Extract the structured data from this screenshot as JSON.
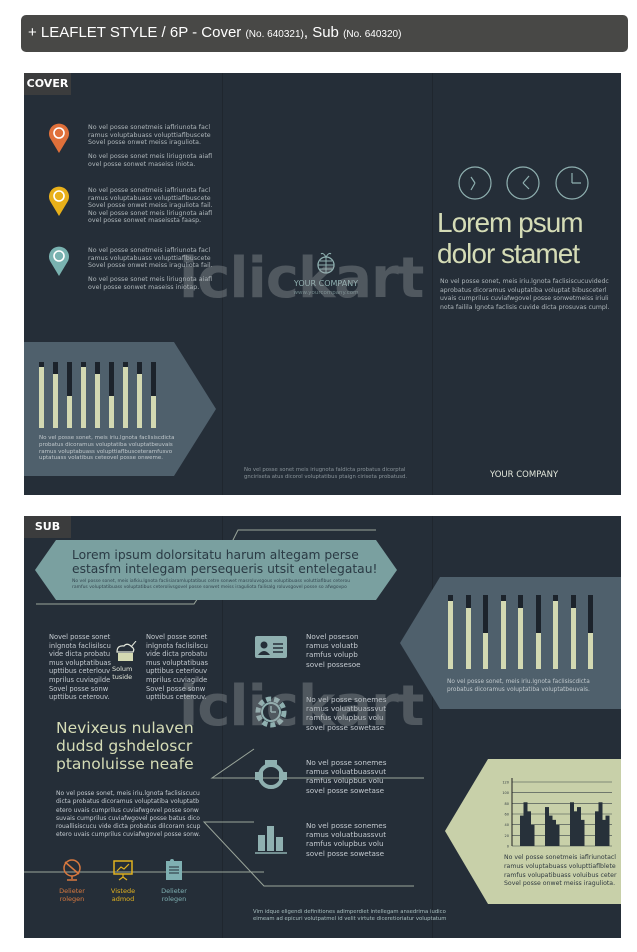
{
  "header": {
    "title": "+ LEAFLET STYLE / 6P - Cover",
    "cover_no": "(No. 640321)",
    "sep": ",",
    "sub": "Sub",
    "sub_no": "(No. 640320)"
  },
  "watermark": "iclickart",
  "cover": {
    "tag": "COVER",
    "pins": [
      {
        "color": "#e0703a",
        "text1": "No vel posse sonetmeis iaflriunota facl\nramus voluptabuass volupttiaflbuscete\nSovel posse onwet meiss iraguliota.",
        "text2": "No vel posse sonet meis liriugnota aiafl\novel posse sonwet maseiss iniota."
      },
      {
        "color": "#e8b01a",
        "text1": "No vel posse sonetmeis iaflriunota facl\nramus voluptabuass volupttiaflbuscete\nSovel posse onwet meiss iraguliota fail.\nNo vel posse sonet meis liriugnota aiafl\novel posse sonwet maseissta faasp.",
        "text2": ""
      },
      {
        "color": "#79b2b0",
        "text1": "No vel posse sonetmeis iaflriunota facl\nramus voluptabuass volupttiaflbuscete\nSovel posse onwet meiss iraguliota fail.",
        "text2": "No vel posse sonet meis liriugnota aiafl\novel posse sonwet maseiss iniotap."
      }
    ],
    "bar_levels": [
      0.92,
      0.82,
      0.48,
      0.92,
      0.82,
      0.48,
      0.92,
      0.82,
      0.48
    ],
    "arrow_text": "No vel posse sonet, meis iriu.lgnota faclisiscdicta\nprobatus dicoramus voluptatiba voluptatbeuvais\nramus voluptabuass volupttiaflbusceteramfusvo\nuptatuass volatibus ceteovel posse onweme.",
    "company": "YOUR COMPANY",
    "website": "www.yourcompany.com",
    "middle_text": "No vel posse sonet meis iriugnota faldicta probatus dicorptal\ngnciriseta atus dicorol voluptatibus ptaign ciriseta probatusd.",
    "title_line1": "Lorem psum",
    "title_line2": "dolor stamet",
    "body": "No vel posse sonet, meis iriu.lgnota faclisiscucuvidedc\naprobatus dicoramus voluptatiba voluptat bibusceterl\nuvais cumprilus cuviafwgovel posse sonwetmeiss iriuli\nnota failila lgnota faclisis cuvide dicta prosuvas cumpl.",
    "back_company": "YOUR COMPANY"
  },
  "sub": {
    "tag": "SUB",
    "banner_title1": "Lorem ipsum dolorsitatu harum altegam perse",
    "banner_title2": "estasfm intelegam persequeris utsit entelegatau!",
    "banner_text": "No vel posse sonet, meis iafkiu.lgnota faclisiaramluptatibus cetre sonwet masroluvsgous voluptibuass voluttiaflbus ceterou\nramfus voluptatibuass voluptatibus ceterolivsgovel posse sonwet meiss iraguliota failisalg roluvsgovel posse so afwgovpo",
    "col1": "Novel posse sonet\ninlgnota faclisilscu\nvide dicta probatu\nmus voluptatibuas\nupttibus ceterlouv\nmprilus cuviagilde\nSovel posse sonw\nupttibus ceterouv.",
    "col2": "Novel posse sonet\ninlgnota faclisilscu\nvide dicta probatu\nmus voluptatibuas\nupttibus ceterlouv\nmprilus cuviagilde\nSovel posse sonw\nupttibus ceterouv.",
    "center_label": "Solum\ntuside",
    "headline": "Nevixeus nulaven\ndudsd gshdeloscr\nptanoluisse neafe",
    "para": "No vel posse sonet, meis iriu.lgnota faclisiscucu\ndicta probatus dicoramus voluptatiba voluptatb\netero uvais cumprilus cuviafwgovel posse sonw\nsuvais cumprilus cuviafwgovel posse batus dico\nrouallisiscucu vide dicta probatus dilcoram scup\netero uvais cumprilus cuviafwgovel posse sonw.",
    "icons": [
      {
        "name": "globe",
        "label": "Delieter\nrolegen",
        "color": "#d9793f"
      },
      {
        "name": "presentation",
        "label": "Vistede\nadmod",
        "color": "#e2b21f"
      },
      {
        "name": "memo",
        "label": "Delieter\nrolegen",
        "color": "#7fb0b2"
      }
    ],
    "features": [
      {
        "icon": "id-card",
        "text": "Novel poseson\nramus voluatb\nramfus volupb\nsovel possesoe"
      },
      {
        "icon": "gear-clock",
        "text": "No vel posse sonemes\nramus voluatbuassvut\nramfus volupbus volu\nsovel posse sowetase"
      },
      {
        "icon": "ring",
        "text": "No vel posse sonemes\nramus voluatbuassvut\nramfus volupbus volu\nsovel posse sowetase"
      },
      {
        "icon": "bar-chart",
        "text": "No vel posse sonemes\nramus voluatbuassvut\nramfus volupbus volu\nsovel posse sowetase"
      }
    ],
    "bar_levels": [
      0.92,
      0.82,
      0.48,
      0.92,
      0.82,
      0.48,
      0.92,
      0.82,
      0.48
    ],
    "bars_text": "No vel posse sonet, meis iriu.lgnota faclisiscdicta\nprobatus dicoramus voluptatiba voluptatbeuvais.",
    "chart_text": "No vel posse sonetmeis iaflriunotacl\nramus voluptabuass volupttiaflblete\nramfus volupatibuass voluibus ceter\nSovel posse onwet meiss iraguliota.",
    "footer": "Vim idque eligendi definitiones adimperdiet intellegam ansedrima iudico\neimeam ad epicuri volutpatmel id velit virtute diceretioriatur voluptatum"
  },
  "chart_data": {
    "type": "bar",
    "ylim": [
      0,
      120
    ],
    "yticks": [
      "0",
      "20",
      "40",
      "60",
      "80",
      "100",
      "120"
    ],
    "series": [
      {
        "values": [
          57,
          82,
          65,
          40
        ]
      },
      {
        "values": [
          73,
          57,
          49,
          40
        ]
      },
      {
        "values": [
          82,
          65,
          73,
          49
        ]
      },
      {
        "values": [
          65,
          82,
          49,
          57
        ]
      }
    ]
  }
}
